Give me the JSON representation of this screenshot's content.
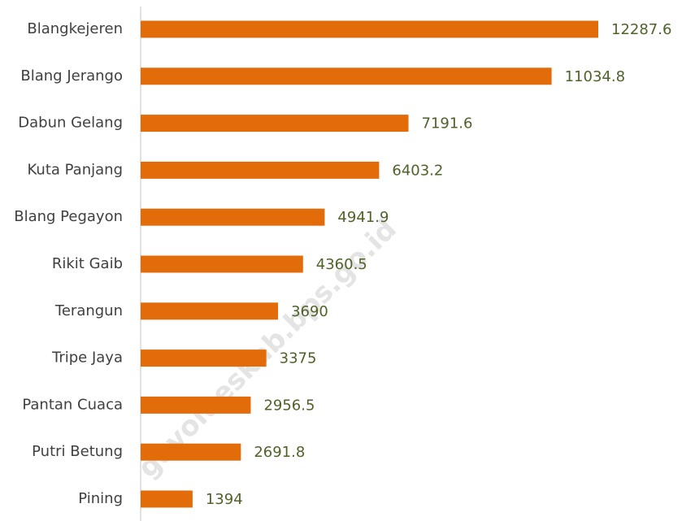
{
  "chart_data": {
    "type": "bar",
    "orientation": "horizontal",
    "categories": [
      "Blangkejeren",
      "Blang Jerango",
      "Dabun Gelang",
      "Kuta Panjang",
      "Blang Pegayon",
      "Rikit Gaib",
      "Terangun",
      "Tripe Jaya",
      "Pantan Cuaca",
      "Putri Betung",
      "Pining"
    ],
    "values": [
      12287.6,
      11034.8,
      7191.6,
      6403.2,
      4941.9,
      4360.5,
      3690,
      3375,
      2956.5,
      2691.8,
      1394
    ],
    "color": "#e36c0a",
    "watermark": "gayolueskab.bps.go.id"
  }
}
